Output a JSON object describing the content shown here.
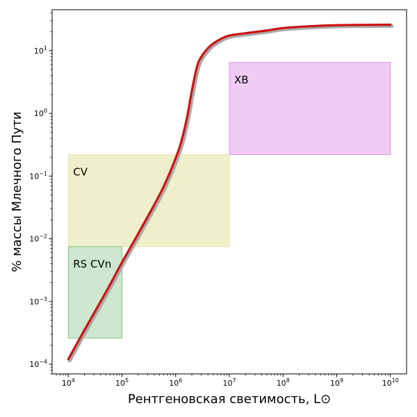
{
  "chart_data": {
    "type": "line",
    "title": "",
    "xlabel": "Рентгеновская светимость, L⊙",
    "ylabel": "% массы Млечного Пути",
    "xscale": "log",
    "yscale": "log",
    "xlim": [
      5000,
      20000000000
    ],
    "ylim": [
      7e-05,
      45
    ],
    "grid": false,
    "x_ticks": [
      {
        "value": 10000,
        "base": "10",
        "exp": "4"
      },
      {
        "value": 100000,
        "base": "10",
        "exp": "5"
      },
      {
        "value": 1000000,
        "base": "10",
        "exp": "6"
      },
      {
        "value": 10000000,
        "base": "10",
        "exp": "7"
      },
      {
        "value": 100000000,
        "base": "10",
        "exp": "8"
      },
      {
        "value": 1000000000,
        "base": "10",
        "exp": "9"
      },
      {
        "value": 10000000000,
        "base": "10",
        "exp": "10"
      }
    ],
    "y_ticks": [
      {
        "value": 0.0001,
        "base": "10",
        "exp": "−4"
      },
      {
        "value": 0.001,
        "base": "10",
        "exp": "−3"
      },
      {
        "value": 0.01,
        "base": "10",
        "exp": "−2"
      },
      {
        "value": 0.1,
        "base": "10",
        "exp": "−1"
      },
      {
        "value": 1,
        "base": "10",
        "exp": "0"
      },
      {
        "value": 10,
        "base": "10",
        "exp": "1"
      }
    ],
    "regions": [
      {
        "label": "CV",
        "x": [
          10000,
          10000000
        ],
        "y": [
          0.0075,
          0.22
        ],
        "color": "#e2e4a0",
        "opacity": 0.55
      },
      {
        "label": "RS CVn",
        "x": [
          10000,
          100000
        ],
        "y": [
          0.00026,
          0.0075
        ],
        "color": "#7fbf7f",
        "opacity": 0.38
      },
      {
        "label": "XB",
        "x": [
          10000000,
          10000000000
        ],
        "y": [
          0.22,
          6.5
        ],
        "color": "#dd8fe6",
        "opacity": 0.45
      }
    ],
    "series": [
      {
        "color": "#cc1111",
        "x": [
          10000,
          20000,
          50000,
          100000,
          200000,
          500000,
          800000,
          1200000,
          1600000,
          2000000,
          2500000,
          3000000,
          4000000,
          5000000,
          7000000,
          10000000,
          20000000,
          50000000,
          100000000,
          300000000,
          1000000000,
          3000000000,
          10000000000
        ],
        "y": [
          0.00012,
          0.00035,
          0.0014,
          0.0042,
          0.012,
          0.05,
          0.12,
          0.3,
          0.8,
          2.3,
          5.6,
          8.0,
          11.0,
          13.0,
          15.5,
          17.5,
          19.0,
          21.0,
          23.0,
          24.5,
          25.5,
          25.8,
          26.0
        ]
      }
    ]
  }
}
